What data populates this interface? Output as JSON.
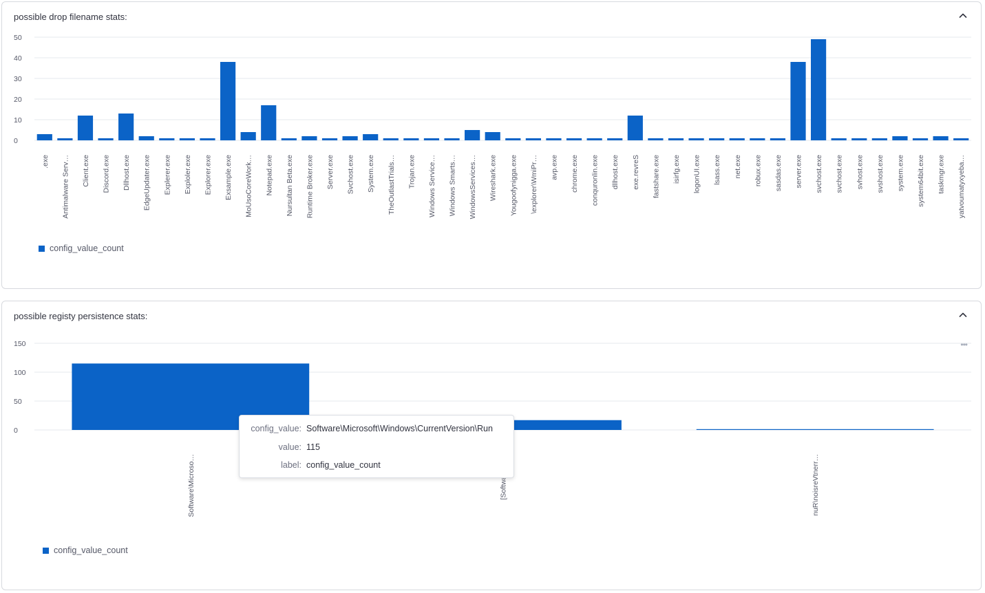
{
  "colors": {
    "bar": "#0b63c7",
    "grid": "#e6e8ec",
    "text": "#555867"
  },
  "icons": {
    "collapse": "chevron-up-icon",
    "menu": "more-horizontal-icon"
  },
  "panels": [
    {
      "title": "possible drop filename stats:",
      "legend_label": "config_value_count"
    },
    {
      "title": "possible registy persistence stats:",
      "legend_label": "config_value_count"
    }
  ],
  "menu_label": "•••",
  "tooltip": {
    "rows": [
      {
        "key": "config_value:",
        "value": "Software\\Microsoft\\Windows\\CurrentVersion\\Run"
      },
      {
        "key": "value:",
        "value": "115"
      },
      {
        "key": "label:",
        "value": "config_value_count"
      }
    ]
  },
  "chart_data": [
    {
      "type": "bar",
      "title": "possible drop filename stats:",
      "categories": [
        ".exe",
        "Antimalware Serv…",
        "Client.exe",
        "Discord.exe",
        "Dllhost.exe",
        "EdgeUpdater.exe",
        "Explerer.exe",
        "Exploler.exe",
        "Explorer.exe",
        "Exsample.exe",
        "MoUsoCoreWork…",
        "Notepad.exe",
        "Nursultan Beta.exe",
        "Runtime Broker.exe",
        "Server.exe",
        "Svchost.exe",
        "System.exe",
        "TheOutlastTrials…",
        "Trojan.exe",
        "Windows Service…",
        "Windows Smarts…",
        "WindowsServices…",
        "Wireshark.exe",
        "Yougoofynigga.exe",
        "\\explorer\\WmiPr…",
        "avp.exe",
        "chrome.exe",
        "conquronlin.exe",
        "dllhost.exe",
        "exe.revreS",
        "fastshare.exe",
        "isirfg.exe",
        "logonUI.exe",
        "lsass.exe",
        "net.exe",
        "robux.exe",
        "sasdas.exe",
        "server.exe",
        "svchost.exe",
        "svchost.exe",
        "svhost.exe",
        "svshost.exe",
        "system.exe",
        "system64bit.exe",
        "taskmgr.exe",
        "yatvoumatyxyeba…"
      ],
      "series": [
        {
          "name": "config_value_count",
          "values": [
            3,
            1,
            12,
            1,
            13,
            2,
            1,
            1,
            1,
            38,
            4,
            17,
            1,
            2,
            1,
            2,
            3,
            1,
            1,
            1,
            1,
            5,
            4,
            1,
            1,
            1,
            1,
            1,
            1,
            12,
            1,
            1,
            1,
            1,
            1,
            1,
            1,
            38,
            49,
            1,
            1,
            1,
            2,
            1,
            2,
            1
          ]
        }
      ],
      "yticks": [
        0,
        10,
        20,
        30,
        40,
        50
      ],
      "ylim": [
        0,
        50
      ],
      "grid": true,
      "legend": "bottom-left"
    },
    {
      "type": "bar",
      "title": "possible registy persistence stats:",
      "categories": [
        "Software\\Microso…",
        "[Software\\M…",
        "nuR\\noisreVtnerr…"
      ],
      "series": [
        {
          "name": "config_value_count",
          "values": [
            115,
            17,
            1
          ]
        }
      ],
      "yticks": [
        0,
        50,
        100,
        150
      ],
      "ylim": [
        0,
        150
      ],
      "grid": true,
      "legend": "bottom-left"
    }
  ]
}
